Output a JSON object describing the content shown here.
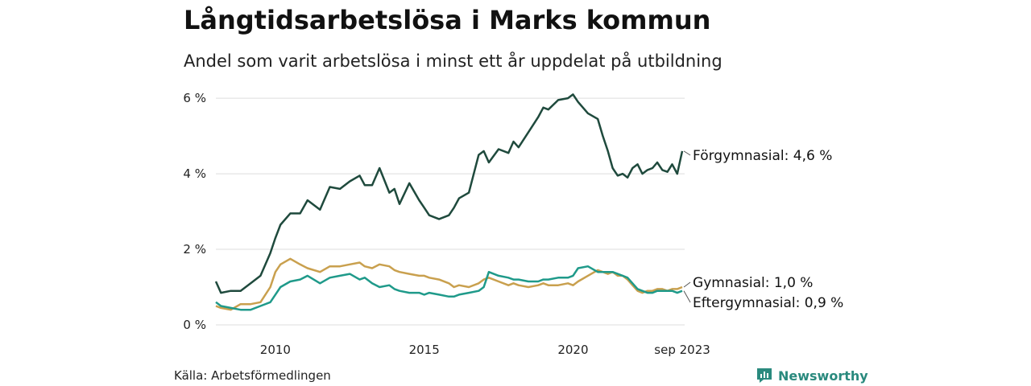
{
  "header": {
    "title": "Långtidsarbetslösa i Marks kommun",
    "subtitle": "Andel som varit arbetslösa i minst ett år uppdelat på utbildning"
  },
  "footer": {
    "source": "Källa: Arbetsförmedlingen",
    "brand": "Newsworthy"
  },
  "colors": {
    "forgymnasial": "#1f4a3d",
    "gymnasial": "#c9a04e",
    "eftergymnasial": "#1f9a8a",
    "grid": "#dddddd",
    "brand": "#2a8a7e"
  },
  "chart_data": {
    "type": "line",
    "title": "Långtidsarbetslösa i Marks kommun",
    "subtitle": "Andel som varit arbetslösa i minst ett år uppdelat på utbildning",
    "xlabel": "",
    "ylabel": "",
    "x_range": [
      2008.0,
      2023.75
    ],
    "ylim": [
      0,
      6.3
    ],
    "y_ticks": [
      0,
      2,
      4,
      6
    ],
    "y_tick_labels": [
      "0 %",
      "2 %",
      "4 %",
      "6 %"
    ],
    "x_ticks": [
      2010,
      2015,
      2020,
      2023.67
    ],
    "x_tick_labels": [
      "2010",
      "2015",
      "2020",
      "sep 2023"
    ],
    "grid": true,
    "series": [
      {
        "name": "Förgymnasial",
        "label": "Förgymnasial: 4,6 %",
        "color_key": "forgymnasial",
        "x": [
          2008.0,
          2008.17,
          2008.5,
          2008.83,
          2009.17,
          2009.5,
          2009.83,
          2010.0,
          2010.17,
          2010.5,
          2010.83,
          2011.08,
          2011.5,
          2011.83,
          2012.17,
          2012.5,
          2012.83,
          2013.0,
          2013.25,
          2013.5,
          2013.83,
          2014.0,
          2014.17,
          2014.5,
          2014.83,
          2015.0,
          2015.17,
          2015.5,
          2015.83,
          2016.0,
          2016.17,
          2016.5,
          2016.83,
          2017.0,
          2017.17,
          2017.5,
          2017.83,
          2018.0,
          2018.17,
          2018.5,
          2018.83,
          2019.0,
          2019.17,
          2019.5,
          2019.83,
          2020.0,
          2020.17,
          2020.5,
          2020.83,
          2021.0,
          2021.17,
          2021.33,
          2021.5,
          2021.67,
          2021.83,
          2022.0,
          2022.17,
          2022.33,
          2022.5,
          2022.67,
          2022.83,
          2023.0,
          2023.17,
          2023.33,
          2023.5,
          2023.67
        ],
        "values": [
          1.15,
          0.85,
          0.9,
          0.9,
          1.1,
          1.3,
          1.9,
          2.3,
          2.65,
          2.95,
          2.95,
          3.3,
          3.05,
          3.65,
          3.6,
          3.8,
          3.95,
          3.7,
          3.7,
          4.15,
          3.5,
          3.6,
          3.2,
          3.75,
          3.3,
          3.1,
          2.9,
          2.8,
          2.9,
          3.1,
          3.35,
          3.5,
          4.5,
          4.6,
          4.3,
          4.65,
          4.55,
          4.85,
          4.7,
          5.1,
          5.5,
          5.75,
          5.7,
          5.95,
          6.0,
          6.1,
          5.9,
          5.6,
          5.45,
          5.0,
          4.6,
          4.15,
          3.95,
          4.0,
          3.9,
          4.15,
          4.25,
          4.0,
          4.1,
          4.15,
          4.3,
          4.1,
          4.05,
          4.25,
          4.0,
          4.6
        ]
      },
      {
        "name": "Gymnasial",
        "label": "Gymnasial: 1,0 %",
        "color_key": "gymnasial",
        "x": [
          2008.0,
          2008.17,
          2008.5,
          2008.83,
          2009.17,
          2009.5,
          2009.83,
          2010.0,
          2010.17,
          2010.5,
          2010.83,
          2011.08,
          2011.5,
          2011.83,
          2012.17,
          2012.5,
          2012.83,
          2013.0,
          2013.25,
          2013.5,
          2013.83,
          2014.0,
          2014.17,
          2014.5,
          2014.83,
          2015.0,
          2015.17,
          2015.5,
          2015.83,
          2016.0,
          2016.17,
          2016.5,
          2016.83,
          2017.0,
          2017.17,
          2017.5,
          2017.83,
          2018.0,
          2018.17,
          2018.5,
          2018.83,
          2019.0,
          2019.17,
          2019.5,
          2019.83,
          2020.0,
          2020.17,
          2020.5,
          2020.83,
          2021.0,
          2021.17,
          2021.33,
          2021.5,
          2021.67,
          2021.83,
          2022.0,
          2022.17,
          2022.33,
          2022.5,
          2022.67,
          2022.83,
          2023.0,
          2023.17,
          2023.33,
          2023.5,
          2023.67
        ],
        "values": [
          0.5,
          0.45,
          0.4,
          0.55,
          0.55,
          0.6,
          1.0,
          1.4,
          1.6,
          1.75,
          1.6,
          1.5,
          1.4,
          1.55,
          1.55,
          1.6,
          1.65,
          1.55,
          1.5,
          1.6,
          1.55,
          1.45,
          1.4,
          1.35,
          1.3,
          1.3,
          1.25,
          1.2,
          1.1,
          1.0,
          1.05,
          1.0,
          1.1,
          1.2,
          1.25,
          1.15,
          1.05,
          1.1,
          1.05,
          1.0,
          1.05,
          1.1,
          1.05,
          1.05,
          1.1,
          1.05,
          1.15,
          1.3,
          1.45,
          1.4,
          1.35,
          1.4,
          1.3,
          1.3,
          1.2,
          1.05,
          0.9,
          0.85,
          0.9,
          0.9,
          0.95,
          0.95,
          0.9,
          0.95,
          0.95,
          1.0
        ]
      },
      {
        "name": "Eftergymnasial",
        "label": "Eftergymnasial: 0,9 %",
        "color_key": "eftergymnasial",
        "x": [
          2008.0,
          2008.17,
          2008.5,
          2008.83,
          2009.17,
          2009.5,
          2009.83,
          2010.0,
          2010.17,
          2010.5,
          2010.83,
          2011.08,
          2011.5,
          2011.83,
          2012.17,
          2012.5,
          2012.83,
          2013.0,
          2013.25,
          2013.5,
          2013.83,
          2014.0,
          2014.17,
          2014.5,
          2014.83,
          2015.0,
          2015.17,
          2015.5,
          2015.83,
          2016.0,
          2016.17,
          2016.5,
          2016.83,
          2017.0,
          2017.17,
          2017.5,
          2017.83,
          2018.0,
          2018.17,
          2018.5,
          2018.83,
          2019.0,
          2019.17,
          2019.5,
          2019.83,
          2020.0,
          2020.17,
          2020.5,
          2020.83,
          2021.0,
          2021.17,
          2021.33,
          2021.5,
          2021.67,
          2021.83,
          2022.0,
          2022.17,
          2022.33,
          2022.5,
          2022.67,
          2022.83,
          2023.0,
          2023.17,
          2023.33,
          2023.5,
          2023.67
        ],
        "values": [
          0.6,
          0.5,
          0.45,
          0.4,
          0.4,
          0.5,
          0.6,
          0.8,
          1.0,
          1.15,
          1.2,
          1.3,
          1.1,
          1.25,
          1.3,
          1.35,
          1.2,
          1.25,
          1.1,
          1.0,
          1.05,
          0.95,
          0.9,
          0.85,
          0.85,
          0.8,
          0.85,
          0.8,
          0.75,
          0.75,
          0.8,
          0.85,
          0.9,
          1.0,
          1.4,
          1.3,
          1.25,
          1.2,
          1.2,
          1.15,
          1.15,
          1.2,
          1.2,
          1.25,
          1.25,
          1.3,
          1.5,
          1.55,
          1.4,
          1.4,
          1.4,
          1.4,
          1.35,
          1.3,
          1.25,
          1.1,
          0.95,
          0.9,
          0.85,
          0.85,
          0.9,
          0.9,
          0.9,
          0.9,
          0.85,
          0.9
        ]
      }
    ]
  }
}
